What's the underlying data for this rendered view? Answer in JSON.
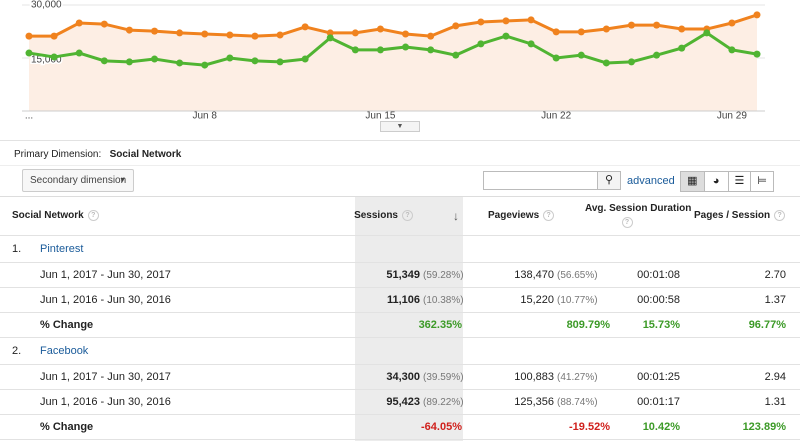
{
  "chart_data": {
    "type": "line",
    "categories": [
      "...",
      null,
      null,
      null,
      null,
      null,
      null,
      "Jun 8",
      null,
      null,
      null,
      null,
      null,
      null,
      "Jun 15",
      null,
      null,
      null,
      null,
      null,
      null,
      "Jun 22",
      null,
      null,
      null,
      null,
      null,
      null,
      "Jun 29",
      null
    ],
    "series": [
      {
        "color": "#f0821e",
        "values": [
          21200,
          21200,
          24900,
          24600,
          22900,
          22600,
          22100,
          21800,
          21500,
          21200,
          21500,
          23800,
          22100,
          22100,
          23200,
          21800,
          21200,
          24100,
          25200,
          25500,
          25800,
          22400,
          22400,
          23200,
          24300,
          24300,
          23200,
          23200,
          24900,
          27200
        ]
      },
      {
        "color": "#50b432",
        "values": [
          16400,
          15300,
          16400,
          14200,
          13900,
          14700,
          13600,
          13000,
          15000,
          14200,
          13900,
          14700,
          20700,
          17300,
          17300,
          18100,
          17300,
          15800,
          19000,
          21200,
          19000,
          15000,
          15800,
          13600,
          13900,
          15800,
          17800,
          22100,
          17300,
          16100
        ]
      }
    ],
    "ylim": [
      0,
      30000
    ],
    "yticks": [
      {
        "value": 15000,
        "label": "15,000"
      },
      {
        "value": 30000,
        "label": "30,000"
      }
    ],
    "grid": true
  },
  "primary_dimension": {
    "label": "Primary Dimension:",
    "value": "Social Network"
  },
  "secondary_dimension": "Secondary dimension",
  "advanced": "advanced",
  "table": {
    "headers": [
      "Social Network",
      "Sessions",
      "Pageviews",
      "Avg. Session Duration",
      "Pages / Session"
    ],
    "groups": [
      {
        "index": "1.",
        "name": "Pinterest",
        "rows": [
          [
            "Jun 1, 2017 - Jun 30, 2017",
            "51,349",
            "(59.28%)",
            "138,470",
            "(56.65%)",
            "00:01:08",
            "2.70"
          ],
          [
            "Jun 1, 2016 - Jun 30, 2016",
            "11,106",
            "(10.38%)",
            "15,220",
            "(10.77%)",
            "00:00:58",
            "1.37"
          ]
        ],
        "change": [
          "% Change",
          "362.35%",
          "809.79%",
          "15.73%",
          "96.77%"
        ]
      },
      {
        "index": "2.",
        "name": "Facebook",
        "rows": [
          [
            "Jun 1, 2017 - Jun 30, 2017",
            "34,300",
            "(39.59%)",
            "100,883",
            "(41.27%)",
            "00:01:25",
            "2.94"
          ],
          [
            "Jun 1, 2016 - Jun 30, 2016",
            "95,423",
            "(89.22%)",
            "125,356",
            "(88.74%)",
            "00:01:17",
            "1.31"
          ]
        ],
        "change": [
          "% Change",
          "-64.05%",
          "-19.52%",
          "10.42%",
          "123.89%"
        ]
      }
    ]
  }
}
